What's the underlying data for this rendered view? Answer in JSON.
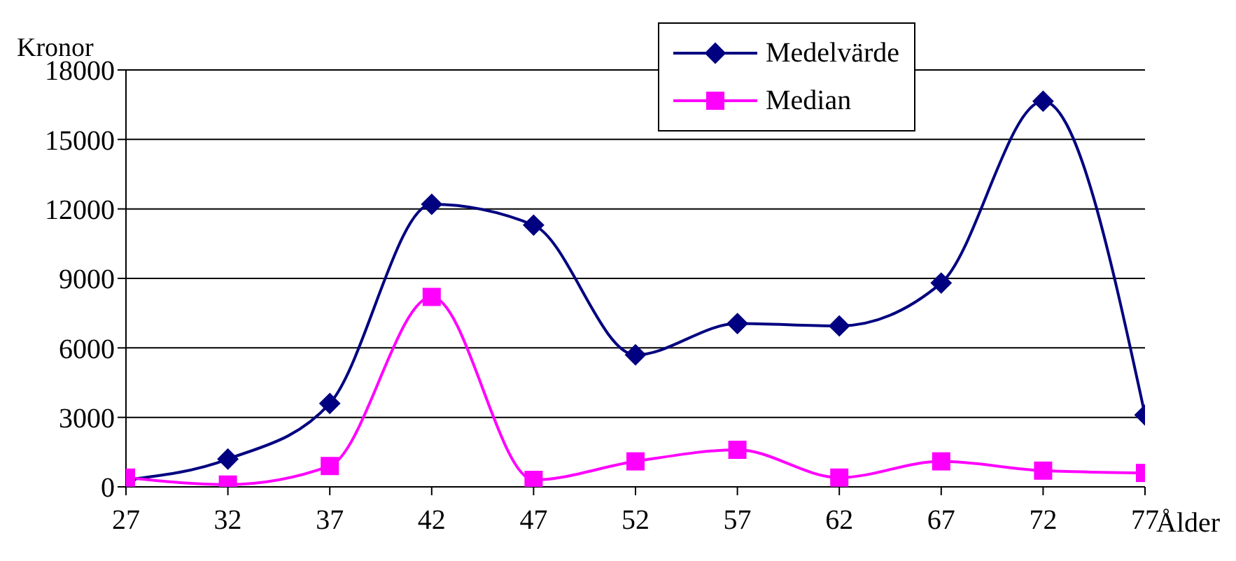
{
  "chart_data": {
    "type": "line",
    "ylabel": "Kronor",
    "xlabel": "Ålder",
    "x": [
      27,
      32,
      37,
      42,
      47,
      52,
      57,
      62,
      67,
      72,
      77
    ],
    "xlim": [
      27,
      77
    ],
    "xticks": [
      27,
      32,
      37,
      42,
      47,
      52,
      57,
      62,
      67,
      72,
      77
    ],
    "ylim": [
      0,
      18000
    ],
    "yticks": [
      0,
      3000,
      6000,
      9000,
      12000,
      15000,
      18000
    ],
    "grid": "y",
    "legend": "top right",
    "line_style": "solid",
    "series": [
      {
        "name": "Medelvärde",
        "color": "#000080",
        "marker": "diamond",
        "values": [
          300,
          1200,
          3600,
          12200,
          11300,
          5700,
          7050,
          6950,
          8800,
          16650,
          3100
        ]
      },
      {
        "name": "Median",
        "color": "#ff00ff",
        "marker": "square",
        "values": [
          400,
          100,
          900,
          8200,
          300,
          1100,
          1600,
          400,
          1100,
          700,
          600
        ]
      }
    ]
  }
}
